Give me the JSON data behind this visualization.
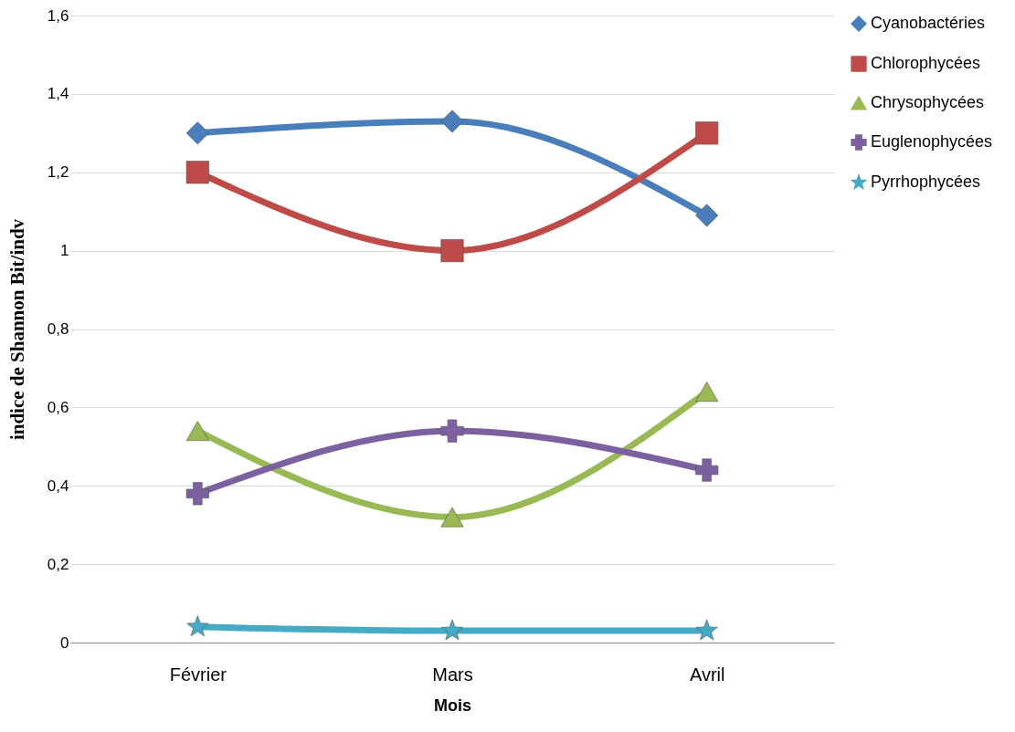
{
  "chart_data": {
    "type": "line",
    "xlabel": "Mois",
    "ylabel": "indice de Shannon  Bit/indv",
    "categories": [
      "Février",
      "Mars",
      "Avril"
    ],
    "series": [
      {
        "name": "Cyanobactéries",
        "color": "#4a7ebb",
        "marker": "diamond",
        "values": [
          1.3,
          1.33,
          1.09
        ]
      },
      {
        "name": "Chlorophycées",
        "color": "#be4b48",
        "marker": "square",
        "values": [
          1.2,
          1.0,
          1.3
        ]
      },
      {
        "name": "Chrysophycées",
        "color": "#98b954",
        "marker": "triangle",
        "values": [
          0.54,
          0.32,
          0.64
        ]
      },
      {
        "name": "Euglenophycées",
        "color": "#7d60a0",
        "marker": "cross",
        "values": [
          0.38,
          0.54,
          0.44
        ]
      },
      {
        "name": "Pyrrhophycées",
        "color": "#46aac5",
        "marker": "star",
        "values": [
          0.04,
          0.03,
          0.03
        ]
      }
    ],
    "ylim": [
      0,
      1.6
    ],
    "yticks": [
      {
        "value": 0,
        "label": "0"
      },
      {
        "value": 0.2,
        "label": "0,2"
      },
      {
        "value": 0.4,
        "label": "0,4"
      },
      {
        "value": 0.6,
        "label": "0,6"
      },
      {
        "value": 0.8,
        "label": "0,8"
      },
      {
        "value": 1,
        "label": "1"
      },
      {
        "value": 1.2,
        "label": "1,2"
      },
      {
        "value": 1.4,
        "label": "1,4"
      },
      {
        "value": 1.6,
        "label": "1,6"
      }
    ],
    "grid": "y",
    "legend": "right",
    "line_style": "solid"
  }
}
